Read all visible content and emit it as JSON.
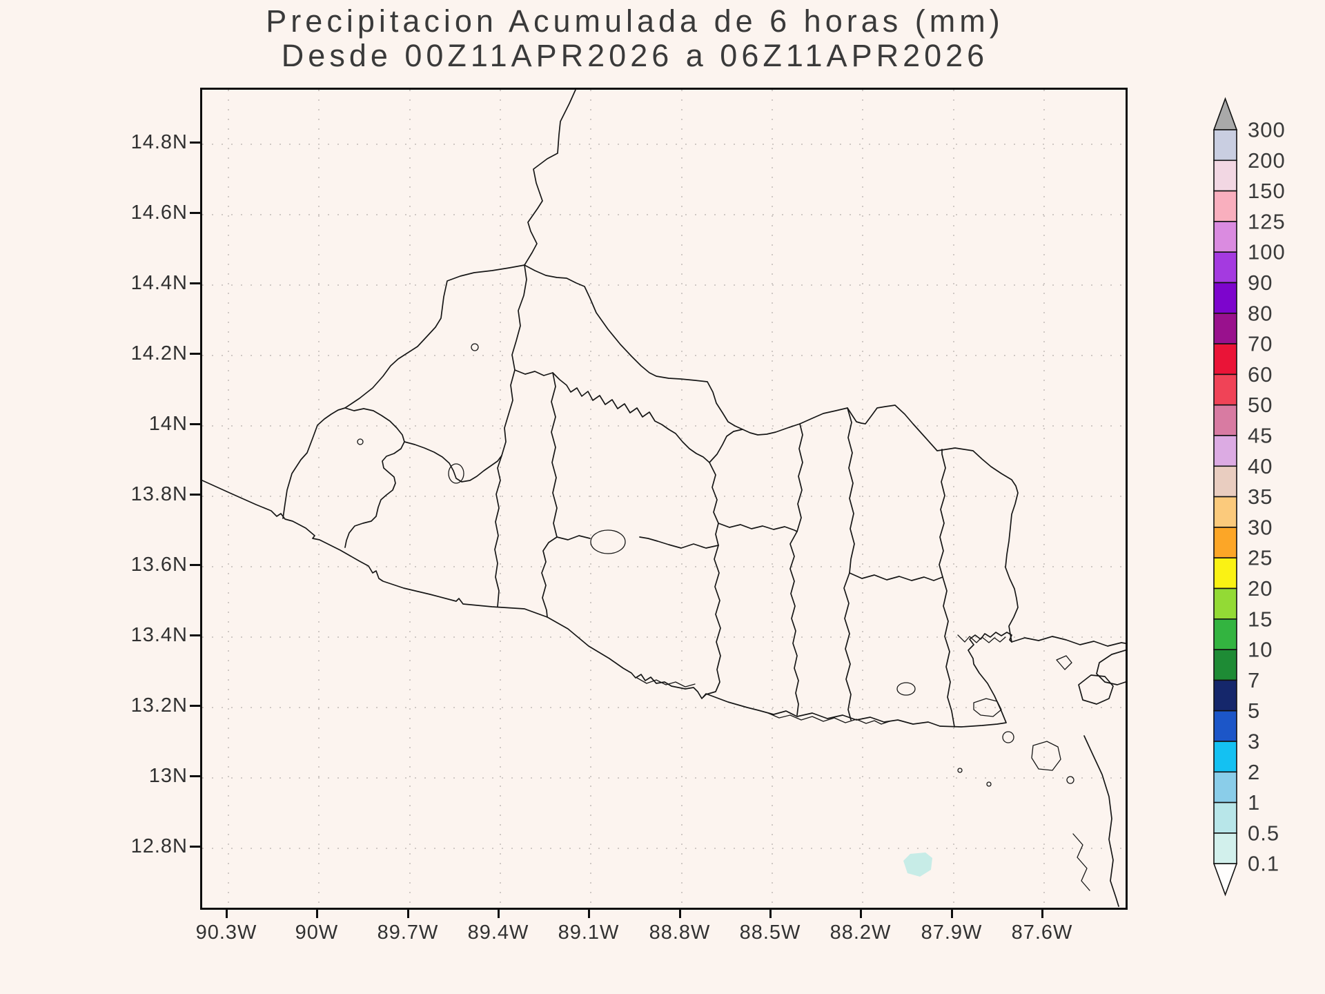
{
  "title": {
    "line1": "Precipitacion Acumulada de 6 horas (mm)",
    "line2": "Desde 00Z11APR2026 a 06Z11APR2026"
  },
  "map": {
    "lat_ticks": [
      "14.8N",
      "14.6N",
      "14.4N",
      "14.2N",
      "14N",
      "13.8N",
      "13.6N",
      "13.4N",
      "13.2N",
      "13N",
      "12.8N"
    ],
    "lon_ticks": [
      "90.3W",
      "90W",
      "89.7W",
      "89.4W",
      "89.1W",
      "88.8W",
      "88.5W",
      "88.2W",
      "87.9W",
      "87.6W"
    ],
    "background_color": "#fcf4ef",
    "frame_color": "#0d0d0d",
    "grid_color": "#cfc8c4",
    "boundary_line_color": "#161616",
    "precip_overlay": {
      "cells": [
        {
          "approx_lon": "88.0W",
          "approx_lat": "12.75N",
          "value_bin_mm": "0.1-0.5",
          "color": "#c7ece7"
        }
      ]
    }
  },
  "colorbar": {
    "labels": [
      "300",
      "200",
      "150",
      "125",
      "100",
      "90",
      "80",
      "70",
      "60",
      "50",
      "45",
      "40",
      "35",
      "30",
      "25",
      "20",
      "15",
      "10",
      "7",
      "5",
      "3",
      "2",
      "1",
      "0.5",
      "0.1"
    ],
    "box_colors_top_to_bottom": [
      "#c9cee1",
      "#f2d7e3",
      "#f9afbe",
      "#da8be0",
      "#a43ae0",
      "#7d05cd",
      "#99118d",
      "#ea1437",
      "#f04357",
      "#d87ba2",
      "#dcabe3",
      "#e9cdc0",
      "#fbca7c",
      "#fca627",
      "#faf214",
      "#93da35",
      "#33b440",
      "#1e8b35",
      "#15276b",
      "#1c56c8",
      "#14c1f2",
      "#8acde9",
      "#b8e6e9",
      "#d2f0ec"
    ],
    "arrow_top_color": "#a9a9a9",
    "arrow_bottom_color": "#fffefd",
    "outline_color": "#111111"
  }
}
